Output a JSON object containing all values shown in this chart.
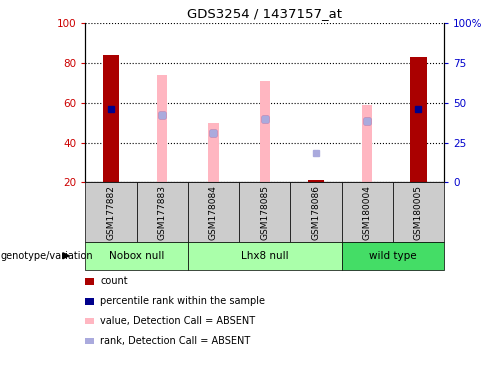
{
  "title": "GDS3254 / 1437157_at",
  "samples": [
    "GSM177882",
    "GSM177883",
    "GSM178084",
    "GSM178085",
    "GSM178086",
    "GSM180004",
    "GSM180005"
  ],
  "red_bars": [
    84,
    null,
    null,
    null,
    21,
    null,
    83
  ],
  "pink_bars": [
    null,
    74,
    50,
    71,
    null,
    59,
    null
  ],
  "blue_squares": [
    57,
    54,
    45,
    52,
    null,
    51,
    57
  ],
  "lightblue_squares": [
    null,
    54,
    45,
    52,
    35,
    51,
    null
  ],
  "ylim_left": [
    20,
    100
  ],
  "yticks_left": [
    20,
    40,
    60,
    80,
    100
  ],
  "yticks_right": [
    0,
    25,
    50,
    75,
    100
  ],
  "yticklabels_right": [
    "0",
    "25",
    "50",
    "75",
    "100%"
  ],
  "left_tick_color": "#CC0000",
  "right_tick_color": "#0000CC",
  "red_bar_color": "#AA0000",
  "pink_bar_color": "#FFB6C1",
  "blue_sq_color": "#00008B",
  "lightblue_sq_color": "#AAAADD",
  "groups": [
    {
      "name": "Nobox null",
      "start": 0,
      "end": 2,
      "color": "#AAFFAA"
    },
    {
      "name": "Lhx8 null",
      "start": 2,
      "end": 5,
      "color": "#AAFFAA"
    },
    {
      "name": "wild type",
      "start": 5,
      "end": 7,
      "color": "#44DD66"
    }
  ],
  "legend_items": [
    {
      "label": "count",
      "color": "#AA0000"
    },
    {
      "label": "percentile rank within the sample",
      "color": "#00008B"
    },
    {
      "label": "value, Detection Call = ABSENT",
      "color": "#FFB6C1"
    },
    {
      "label": "rank, Detection Call = ABSENT",
      "color": "#AAAADD"
    }
  ]
}
